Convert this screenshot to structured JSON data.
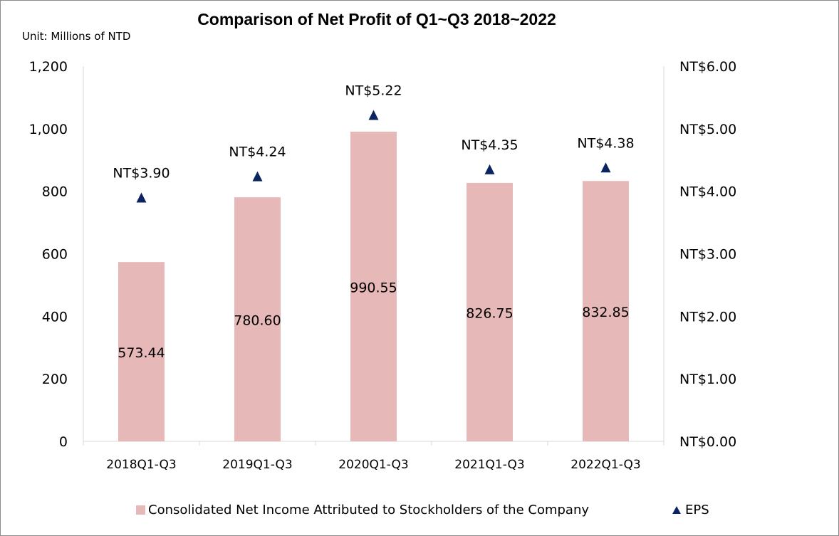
{
  "chart_data": {
    "type": "bar",
    "title": "Comparison of Net Profit of Q1~Q3 2018~2022",
    "subtitle": "Unit: Millions of NTD",
    "categories": [
      "2018Q1-Q3",
      "2019Q1-Q3",
      "2020Q1-Q3",
      "2021Q1-Q3",
      "2022Q1-Q3"
    ],
    "series": [
      {
        "name": "Consolidated Net Income Attributed to Stockholders of the Company",
        "type": "bar",
        "axis": "left",
        "values": [
          573.44,
          780.6,
          990.55,
          826.75,
          832.85
        ],
        "labels": [
          "573.44",
          "780.60",
          "990.55",
          "826.75",
          "832.85"
        ],
        "color": "#e6b9b8"
      },
      {
        "name": "EPS",
        "type": "scatter",
        "marker": "triangle",
        "axis": "right",
        "values": [
          3.9,
          4.24,
          5.22,
          4.35,
          4.38
        ],
        "labels": [
          "NT$3.90",
          "NT$4.24",
          "NT$5.22",
          "NT$4.35",
          "NT$4.38"
        ],
        "color": "#0c2461"
      }
    ],
    "y_left": {
      "range": [
        0,
        1200
      ],
      "ticks": [
        0,
        200,
        400,
        600,
        800,
        1000,
        1200
      ],
      "tick_labels": [
        "0",
        "200",
        "400",
        "600",
        "800",
        "1,000",
        "1,200"
      ]
    },
    "y_right": {
      "range": [
        0,
        6
      ],
      "ticks": [
        0,
        1,
        2,
        3,
        4,
        5,
        6
      ],
      "tick_labels": [
        "NT$0.00",
        "NT$1.00",
        "NT$2.00",
        "NT$3.00",
        "NT$4.00",
        "NT$5.00",
        "NT$6.00"
      ]
    },
    "grid": false,
    "legend_position": "bottom"
  }
}
